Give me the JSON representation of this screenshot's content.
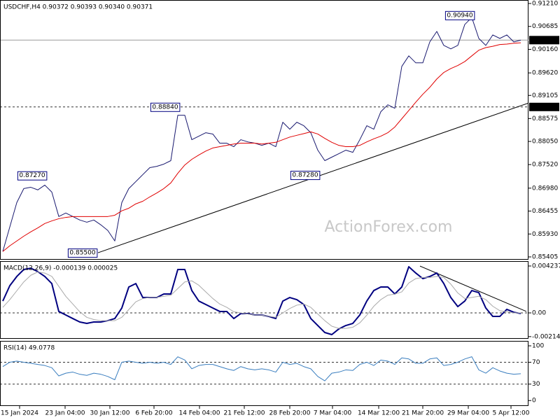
{
  "chart_data": [
    {
      "type": "line",
      "title": "USDCHF,H4  0.90372 0.90393 0.90340 0.90371",
      "watermark": "ActionForex.com",
      "x": [
        0,
        1,
        2,
        3,
        4,
        5,
        6,
        7,
        8,
        9,
        10,
        11,
        12,
        13,
        14,
        15,
        16,
        17,
        18,
        19,
        20,
        21,
        22,
        23,
        24,
        25,
        26,
        27,
        28,
        29,
        30,
        31,
        32,
        33,
        34,
        35,
        36,
        37,
        38,
        39,
        40,
        41,
        42,
        43,
        44,
        45,
        46,
        47,
        48,
        49,
        50,
        51,
        52,
        53,
        54,
        55,
        56,
        57,
        58,
        59,
        60,
        61,
        62,
        63,
        64,
        65,
        66,
        67,
        68,
        69,
        70,
        71,
        72,
        73,
        74
      ],
      "series": [
        {
          "color": "#1a1a70",
          "values": [
            0.8553,
            0.8609,
            0.8665,
            0.8697,
            0.87,
            0.8694,
            0.8705,
            0.8689,
            0.8633,
            0.8641,
            0.8633,
            0.8625,
            0.862,
            0.8625,
            0.8614,
            0.8601,
            0.8577,
            0.8665,
            0.8697,
            0.8713,
            0.8729,
            0.8745,
            0.8748,
            0.8753,
            0.8761,
            0.8865,
            0.8865,
            0.8809,
            0.8817,
            0.8825,
            0.8822,
            0.8801,
            0.8801,
            0.8793,
            0.8809,
            0.8804,
            0.8801,
            0.8796,
            0.8801,
            0.8793,
            0.8849,
            0.8833,
            0.8849,
            0.8841,
            0.8825,
            0.8785,
            0.8761,
            0.8769,
            0.8777,
            0.8785,
            0.878,
            0.8809,
            0.8841,
            0.8833,
            0.8873,
            0.8889,
            0.8881,
            0.8977,
            0.9001,
            0.8985,
            0.8985,
            0.9033,
            0.9057,
            0.9025,
            0.9017,
            0.9025,
            0.9073,
            0.9089,
            0.9041,
            0.9025,
            0.9049,
            0.9041,
            0.9049,
            0.9033,
            0.9037
          ]
        },
        {
          "color": "#e00000",
          "values": [
            0.8553,
            0.8566,
            0.8577,
            0.8588,
            0.8598,
            0.8607,
            0.8617,
            0.8623,
            0.8628,
            0.8631,
            0.8633,
            0.8633,
            0.8633,
            0.8633,
            0.8633,
            0.8633,
            0.8636,
            0.8646,
            0.8652,
            0.8662,
            0.8668,
            0.8678,
            0.8687,
            0.8697,
            0.871,
            0.8732,
            0.8751,
            0.8764,
            0.8774,
            0.8783,
            0.879,
            0.8793,
            0.8796,
            0.8799,
            0.8801,
            0.8801,
            0.8801,
            0.8799,
            0.8801,
            0.8803,
            0.8809,
            0.8815,
            0.8819,
            0.8823,
            0.8827,
            0.8822,
            0.8812,
            0.8803,
            0.8796,
            0.8793,
            0.8793,
            0.8796,
            0.8804,
            0.8811,
            0.8817,
            0.8825,
            0.8838,
            0.8857,
            0.8876,
            0.8895,
            0.8913,
            0.8929,
            0.8948,
            0.8963,
            0.8972,
            0.8979,
            0.8988,
            0.9001,
            0.9014,
            0.902,
            0.9023,
            0.9027,
            0.9028,
            0.903,
            0.9031
          ]
        }
      ],
      "xlim": [
        -0.4,
        75.1
      ],
      "ylim": [
        0.85357,
        0.9129
      ],
      "yticks": [
        {
          "value": 0.9121,
          "label": "0.91210"
        },
        {
          "value": 0.90685,
          "label": "0.90685"
        },
        {
          "value": 0.9016,
          "label": "0.90160"
        },
        {
          "value": 0.8962,
          "label": "0.89620"
        },
        {
          "value": 0.89105,
          "label": "0.89105"
        },
        {
          "value": 0.88575,
          "label": "0.88575"
        },
        {
          "value": 0.8805,
          "label": "0.88050"
        },
        {
          "value": 0.8752,
          "label": "0.87520"
        },
        {
          "value": 0.8698,
          "label": "0.86980"
        },
        {
          "value": 0.86455,
          "label": "0.86455"
        },
        {
          "value": 0.8593,
          "label": "0.85930"
        },
        {
          "value": 0.85405,
          "label": "0.85405"
        }
      ],
      "hlines": [
        {
          "value": 0.90371,
          "label": "0.90371",
          "style": "solid"
        },
        {
          "value": 0.8884,
          "label": "0.88840",
          "style": "dashed"
        }
      ],
      "trendlines": [
        {
          "x": [
            13.6,
            75.1
          ],
          "values": [
            0.855,
            0.8893
          ]
        }
      ],
      "annotations": [
        {
          "x": 65.3,
          "value": 0.9094,
          "label": "0.90940"
        },
        {
          "x": 23.2,
          "value": 0.8884,
          "label": "0.88840"
        },
        {
          "x": 4.2,
          "value": 0.8727,
          "label": "0.87270"
        },
        {
          "x": 43.2,
          "value": 0.8728,
          "label": "0.87280"
        },
        {
          "x": 11.4,
          "value": 0.855,
          "label": "0.85500"
        }
      ]
    },
    {
      "type": "line",
      "title": "MACD(12,26,9) -0.000139 0.000025",
      "x": [
        0,
        1,
        2,
        3,
        4,
        5,
        6,
        7,
        8,
        9,
        10,
        11,
        12,
        13,
        14,
        15,
        16,
        17,
        18,
        19,
        20,
        21,
        22,
        23,
        24,
        25,
        26,
        27,
        28,
        29,
        30,
        31,
        32,
        33,
        34,
        35,
        36,
        37,
        38,
        39,
        40,
        41,
        42,
        43,
        44,
        45,
        46,
        47,
        48,
        49,
        50,
        51,
        52,
        53,
        54,
        55,
        56,
        57,
        58,
        59,
        60,
        61,
        62,
        63,
        64,
        65,
        66,
        67,
        68,
        69,
        70,
        71,
        72,
        73,
        74
      ],
      "series": [
        {
          "color": "#000080",
          "values": [
            0.00107,
            0.00246,
            0.00329,
            0.00392,
            0.00404,
            0.00373,
            0.00329,
            0.00265,
            0.00013,
            -0.00019,
            -0.00051,
            -0.00082,
            -0.00095,
            -0.00082,
            -0.00082,
            -0.0007,
            -0.00051,
            0.00044,
            0.00234,
            0.00265,
            0.00139,
            0.00139,
            0.00139,
            0.00171,
            0.00171,
            0.00392,
            0.00392,
            0.00202,
            0.00107,
            0.00076,
            0.00044,
            0.00013,
            0.00013,
            -0.00051,
            -6e-05,
            -6e-05,
            -0.00019,
            -0.00019,
            -0.00032,
            -0.00051,
            0.00107,
            0.00139,
            0.0012,
            0.00076,
            -0.00051,
            -0.00114,
            -0.00177,
            -0.00196,
            -0.00145,
            -0.00114,
            -0.00095,
            -0.00019,
            0.00107,
            0.00202,
            0.00234,
            0.00234,
            0.00171,
            0.00234,
            0.00417,
            0.0036,
            0.0031,
            0.00329,
            0.0036,
            0.00265,
            0.00139,
            0.00057,
            0.00107,
            0.00202,
            0.00183,
            0.00044,
            -0.00032,
            -0.00032,
            0.00032,
            6e-05,
            -6e-05
          ]
        },
        {
          "color": "#aaaaaa",
          "values": [
            0.0005,
            0.0012,
            0.002,
            0.0028,
            0.0034,
            0.0037,
            0.0036,
            0.0033,
            0.0024,
            0.0015,
            0.0008,
            0.0001,
            -0.0004,
            -0.0006,
            -0.0007,
            -0.0007,
            -0.0007,
            -0.0004,
            0.0003,
            0.001,
            0.0013,
            0.0014,
            0.0014,
            0.0015,
            0.0016,
            0.0022,
            0.0028,
            0.0029,
            0.0025,
            0.0019,
            0.0013,
            0.0008,
            0.0005,
            0.0001,
            0.0,
            -0.0001,
            -0.0002,
            -0.0002,
            -0.0003,
            -0.0004,
            0.0,
            0.0004,
            0.0007,
            0.0008,
            0.0005,
            -0.0001,
            -0.0007,
            -0.0012,
            -0.0014,
            -0.0014,
            -0.0013,
            -0.0009,
            -0.0002,
            0.0006,
            0.0012,
            0.0016,
            0.0017,
            0.0019,
            0.0027,
            0.0031,
            0.0032,
            0.0032,
            0.0033,
            0.0032,
            0.0026,
            0.0018,
            0.0013,
            0.0014,
            0.0015,
            0.0012,
            0.0006,
            0.0002,
            0.0001,
            0.0,
            0.0
          ]
        }
      ],
      "xlim": [
        -0.4,
        75.1
      ],
      "ylim": [
        -0.00234,
        0.00468
      ],
      "yticks": [
        0.004237,
        {
          "value": 0,
          "label": "0.00"
        },
        -0.002142
      ],
      "hlines": [
        {
          "value": 0,
          "style": "dashed"
        }
      ],
      "trendlines": [
        {
          "x": [
            59.6,
            74.8
          ],
          "values": [
            0.00423,
            0.00013
          ]
        }
      ]
    },
    {
      "type": "line",
      "title": "RSI(14) 49.0778",
      "x": [
        0,
        1,
        2,
        3,
        4,
        5,
        6,
        7,
        8,
        9,
        10,
        11,
        12,
        13,
        14,
        15,
        16,
        17,
        18,
        19,
        20,
        21,
        22,
        23,
        24,
        25,
        26,
        27,
        28,
        29,
        30,
        31,
        32,
        33,
        34,
        35,
        36,
        37,
        38,
        39,
        40,
        41,
        42,
        43,
        44,
        45,
        46,
        47,
        48,
        49,
        50,
        51,
        52,
        53,
        54,
        55,
        56,
        57,
        58,
        59,
        60,
        61,
        62,
        63,
        64,
        65,
        66,
        67,
        68,
        69,
        70,
        71,
        72,
        73,
        74
      ],
      "series": [
        {
          "color": "#3a7ebf",
          "values": [
            62,
            70,
            72,
            70,
            68,
            66,
            64,
            60,
            45,
            50,
            52,
            48,
            46,
            50,
            48,
            44,
            38,
            70,
            72,
            70,
            68,
            70,
            68,
            70,
            66,
            80,
            74,
            58,
            64,
            66,
            66,
            62,
            58,
            55,
            62,
            58,
            56,
            58,
            56,
            52,
            70,
            66,
            68,
            62,
            58,
            44,
            36,
            50,
            52,
            56,
            55,
            66,
            70,
            64,
            74,
            72,
            66,
            78,
            76,
            68,
            68,
            76,
            78,
            64,
            66,
            70,
            76,
            80,
            56,
            50,
            60,
            54,
            50,
            48,
            49
          ]
        }
      ],
      "xlim": [
        -0.4,
        75.1
      ],
      "ylim": [
        -10,
        109
      ],
      "yticks": [
        100,
        70,
        30,
        0
      ],
      "hlines": [
        {
          "value": 70,
          "style": "dashed"
        },
        {
          "value": 30,
          "style": "dashed"
        }
      ],
      "xticks": [
        {
          "value": 2.4,
          "label": "15 Jan 2024"
        },
        {
          "value": 8.9,
          "label": "23 Jan 04:00"
        },
        {
          "value": 15.3,
          "label": "30 Jan 12:00"
        },
        {
          "value": 21.6,
          "label": "6 Feb 20:00"
        },
        {
          "value": 28.1,
          "label": "14 Feb 04:00"
        },
        {
          "value": 34.5,
          "label": "21 Feb 12:00"
        },
        {
          "value": 41,
          "label": "28 Feb 20:00"
        },
        {
          "value": 47.1,
          "label": "7 Mar 04:00"
        },
        {
          "value": 53.7,
          "label": "14 Mar 12:00"
        },
        {
          "value": 60,
          "label": "21 Mar 20:00"
        },
        {
          "value": 66.5,
          "label": "29 Mar 04:00"
        },
        {
          "value": 72.6,
          "label": "5 Apr 12:00"
        }
      ]
    }
  ]
}
